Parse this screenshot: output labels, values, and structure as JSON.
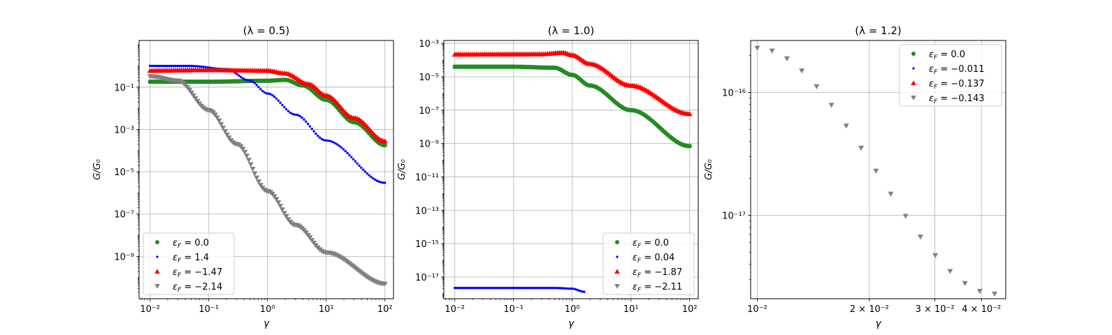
{
  "colors": {
    "green": "#228b22",
    "blue": "#0000ff",
    "red": "#ff0000",
    "gray": "#808080"
  },
  "chart_data": [
    {
      "type": "scatter",
      "title": "(λ = 0.5)",
      "xlabel": "γ",
      "ylabel": "G/G₀",
      "xscale": "log",
      "yscale": "log",
      "xlim": [
        0.0065,
        140
      ],
      "ylim": [
        1e-11,
        16.0
      ],
      "xticks": [
        0.01,
        0.1,
        1,
        10,
        100
      ],
      "xtick_labels": [
        "10⁻²",
        "10⁻¹",
        "10⁰",
        "10¹",
        "10²"
      ],
      "yticks": [
        1e-09,
        1e-07,
        1e-05,
        0.001,
        0.1
      ],
      "ytick_labels": [
        "10⁻⁹",
        "10⁻⁷",
        "10⁻⁵",
        "10⁻³",
        "10⁻¹"
      ],
      "grid": true,
      "legend_position": "lower-left",
      "series": [
        {
          "name": "εF = 0.0",
          "label_main": "ε",
          "label_sub": "F",
          "label_rest": " = 0.0",
          "color": "green",
          "marker": "circle",
          "x_range": [
            0.01,
            100
          ],
          "n_points": 120,
          "points": [
            [
              0.01,
              0.18
            ],
            [
              0.1,
              0.18
            ],
            [
              1,
              0.2
            ],
            [
              2,
              0.22
            ],
            [
              4,
              0.12
            ],
            [
              10,
              0.025
            ],
            [
              30,
              0.0022
            ],
            [
              100,
              0.00018
            ]
          ]
        },
        {
          "name": "εF = 1.4",
          "label_main": "ε",
          "label_sub": "F",
          "label_rest": " = 1.4",
          "color": "blue",
          "marker": "dot",
          "x_range": [
            0.01,
            100
          ],
          "n_points": 120,
          "points": [
            [
              0.01,
              1.0
            ],
            [
              0.05,
              1.0
            ],
            [
              0.2,
              0.7
            ],
            [
              0.5,
              0.2
            ],
            [
              1,
              0.05
            ],
            [
              3,
              0.005
            ],
            [
              10,
              0.0003
            ],
            [
              100,
              3e-06
            ]
          ]
        },
        {
          "name": "εF = −1.47",
          "label_main": "ε",
          "label_sub": "F",
          "label_rest": " = −1.47",
          "color": "red",
          "marker": "triangle-up",
          "x_range": [
            0.01,
            100
          ],
          "n_points": 120,
          "points": [
            [
              0.01,
              0.6
            ],
            [
              0.1,
              0.65
            ],
            [
              1,
              0.6
            ],
            [
              2,
              0.45
            ],
            [
              5,
              0.14
            ],
            [
              10,
              0.04
            ],
            [
              30,
              0.0035
            ],
            [
              100,
              0.00028
            ]
          ]
        },
        {
          "name": "εF = −2.14",
          "label_main": "ε",
          "label_sub": "F",
          "label_rest": " = −2.14",
          "color": "gray",
          "marker": "triangle-down",
          "x_range": [
            0.01,
            100
          ],
          "n_points": 120,
          "points": [
            [
              0.01,
              0.32
            ],
            [
              0.03,
              0.2
            ],
            [
              0.1,
              0.008
            ],
            [
              0.3,
              0.0002
            ],
            [
              1,
              1.2e-06
            ],
            [
              3,
              3e-08
            ],
            [
              10,
              1.5e-09
            ],
            [
              100,
              5e-11
            ]
          ]
        }
      ]
    },
    {
      "type": "scatter",
      "title": "(λ = 1.0)",
      "xlabel": "γ",
      "ylabel": "G/G₀",
      "xscale": "log",
      "yscale": "log",
      "xlim": [
        0.0065,
        140
      ],
      "ylim": [
        5e-19,
        0.0015
      ],
      "xticks": [
        0.01,
        0.1,
        1,
        10,
        100
      ],
      "xtick_labels": [
        "10⁻²",
        "10⁻¹",
        "10⁰",
        "10¹",
        "10²"
      ],
      "yticks": [
        1e-17,
        1e-15,
        1e-13,
        1e-11,
        1e-09,
        1e-07,
        1e-05,
        0.001
      ],
      "ytick_labels": [
        "10⁻¹⁷",
        "10⁻¹⁵",
        "10⁻¹³",
        "10⁻¹¹",
        "10⁻⁹",
        "10⁻⁷",
        "10⁻⁵",
        "10⁻³"
      ],
      "grid": true,
      "legend_position": "lower-right",
      "series": [
        {
          "name": "εF = 0.0",
          "label_main": "ε",
          "label_sub": "F",
          "label_rest": " = 0.0",
          "color": "green",
          "marker": "circle",
          "x_range": [
            0.01,
            100
          ],
          "n_points": 120,
          "points": [
            [
              0.01,
              4e-05
            ],
            [
              0.1,
              4e-05
            ],
            [
              0.5,
              3.5e-05
            ],
            [
              1,
              1.3e-05
            ],
            [
              2,
              3e-06
            ],
            [
              10,
              1e-07
            ],
            [
              100,
              7e-10
            ]
          ]
        },
        {
          "name": "εF = 0.04",
          "label_main": "ε",
          "label_sub": "F",
          "label_rest": " = 0.04",
          "color": "blue",
          "marker": "dot",
          "x_range": [
            0.01,
            1.6
          ],
          "n_points": 70,
          "points": [
            [
              0.01,
              2.2e-18
            ],
            [
              0.5,
              2.2e-18
            ],
            [
              1,
              2e-18
            ],
            [
              1.6,
              1.3e-18
            ]
          ]
        },
        {
          "name": "εF = −1.87",
          "label_main": "ε",
          "label_sub": "F",
          "label_rest": " = −1.87",
          "color": "red",
          "marker": "triangle-up",
          "x_range": [
            0.01,
            100
          ],
          "n_points": 120,
          "points": [
            [
              0.01,
              0.00022
            ],
            [
              0.3,
              0.00023
            ],
            [
              0.7,
              0.00028
            ],
            [
              1,
              0.0002
            ],
            [
              2,
              6e-05
            ],
            [
              10,
              3e-06
            ],
            [
              100,
              6e-08
            ]
          ]
        },
        {
          "name": "εF = −2.11",
          "label_main": "ε",
          "label_sub": "F",
          "label_rest": " = −2.11",
          "color": "gray",
          "marker": "triangle-down",
          "x_range": null,
          "n_points": 0,
          "points": []
        }
      ]
    },
    {
      "type": "scatter",
      "title": "(λ = 1.2)",
      "xlabel": "γ",
      "ylabel": "G/G₀",
      "xscale": "log",
      "yscale": "log",
      "xlim": [
        0.0096,
        0.0465
      ],
      "ylim": [
        2.1e-18,
        2.65e-16
      ],
      "xticks": [
        0.01,
        0.02,
        0.03,
        0.04
      ],
      "xtick_labels": [
        "10⁻²",
        "2 × 10⁻²",
        "3 × 10⁻²",
        "4 × 10⁻²"
      ],
      "yticks": [
        1e-16,
        1e-17
      ],
      "ytick_labels": [
        "10⁻¹⁶",
        "10⁻¹⁷"
      ],
      "grid": true,
      "legend_position": "upper-right",
      "series": [
        {
          "name": "εF = 0.0",
          "label_main": "ε",
          "label_sub": "F",
          "label_rest": " = 0.0",
          "color": "green",
          "marker": "circle",
          "x_range": null,
          "n_points": 0,
          "points": []
        },
        {
          "name": "εF = −0.011",
          "label_main": "ε",
          "label_sub": "F",
          "label_rest": " = −0.011",
          "color": "blue",
          "marker": "dot",
          "x_range": null,
          "n_points": 0,
          "points": []
        },
        {
          "name": "εF = −0.137",
          "label_main": "ε",
          "label_sub": "F",
          "label_rest": " = −0.137",
          "color": "red",
          "marker": "triangle-up",
          "x_range": null,
          "n_points": 0,
          "points": []
        },
        {
          "name": "εF = −0.143",
          "label_main": "ε",
          "label_sub": "F",
          "label_rest": " = −0.143",
          "color": "gray",
          "marker": "triangle-down",
          "x_range": [
            0.01,
            0.0434
          ],
          "n_points": 17,
          "points": [
            [
              0.01,
              2.3e-16
            ],
            [
              0.0434,
              2.3e-18
            ]
          ]
        }
      ]
    }
  ]
}
